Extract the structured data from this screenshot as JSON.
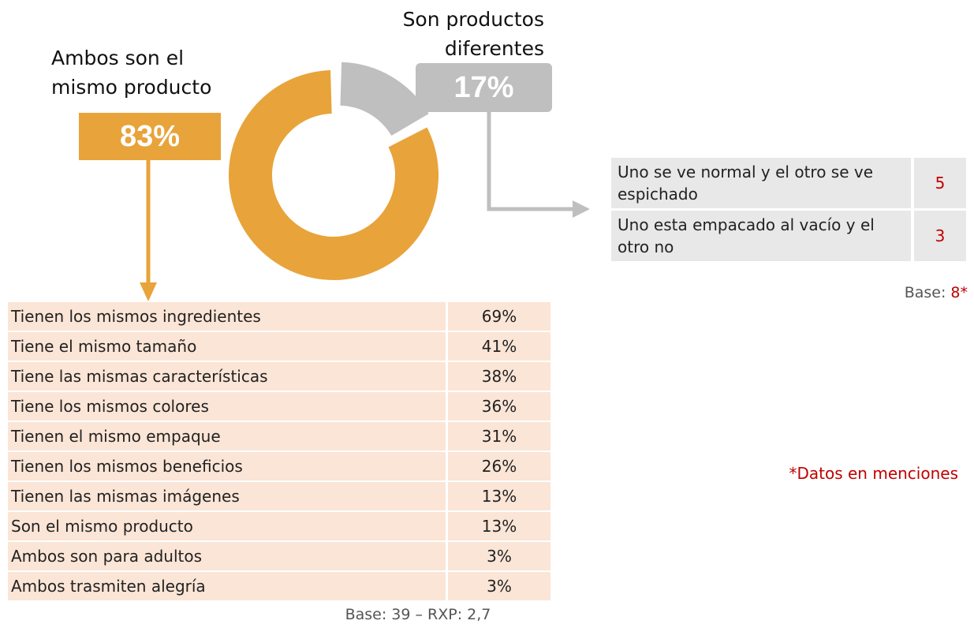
{
  "chart_data": {
    "type": "pie",
    "donut": true,
    "categories": [
      "Ambos son el mismo producto",
      "Son productos diferentes"
    ],
    "values": [
      83,
      17
    ],
    "value_labels": [
      "83%",
      "17%"
    ],
    "colors": [
      "#e8a33a",
      "#bfbfbf"
    ]
  },
  "differences_table": {
    "rows": [
      [
        "Uno se ve normal y el otro se ve espichado",
        "5"
      ],
      [
        "Uno esta empacado al vacío y el otro no",
        "3"
      ]
    ],
    "base_label": "Base:",
    "base_value": "8*"
  },
  "similarities_table": {
    "rows": [
      [
        "Tienen los mismos ingredientes",
        "69%"
      ],
      [
        "Tiene el mismo tamaño",
        "41%"
      ],
      [
        "Tiene las mismas características",
        "38%"
      ],
      [
        "Tiene los mismos colores",
        "36%"
      ],
      [
        "Tienen el mismo empaque",
        "31%"
      ],
      [
        "Tienen los mismos beneficios",
        "26%"
      ],
      [
        "Tienen las mismas imágenes",
        "13%"
      ],
      [
        "Son el mismo producto",
        "13%"
      ],
      [
        "Ambos son para adultos",
        "3%"
      ],
      [
        "Ambos trasmiten alegría",
        "3%"
      ]
    ],
    "base": "Base: 39 – RXP: 2,7"
  },
  "note": "*Datos en menciones"
}
